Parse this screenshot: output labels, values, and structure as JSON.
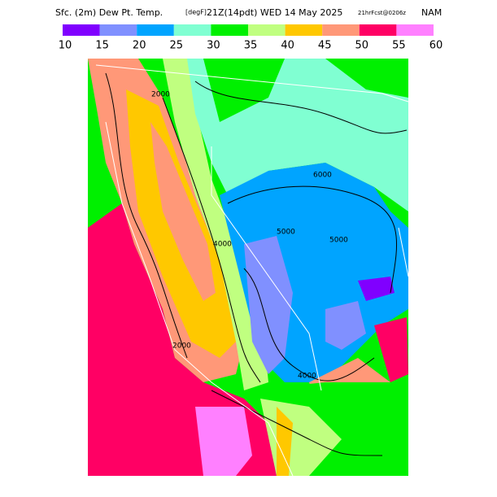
{
  "header": {
    "title": "Sfc. (2m) Dew Pt. Temp.",
    "units": "[degF]",
    "valid": "21Z(14pdt) WED 14 May 2025",
    "forecast": "21hrFcst@0206z",
    "model": "NAM"
  },
  "legend": {
    "bins": [
      10,
      15,
      20,
      25,
      30,
      35,
      40,
      45,
      50,
      55,
      60
    ],
    "colors": [
      "#8000ff",
      "#8090ff",
      "#00a4ff",
      "#80ffd2",
      "#00f000",
      "#c0ff80",
      "#ffc800",
      "#ff9878",
      "#ff0064",
      "#ff80ff"
    ]
  },
  "map": {
    "contour_labels": [
      "2000",
      "4000",
      "6000",
      "5000",
      "5000",
      "4000",
      "2000"
    ]
  }
}
